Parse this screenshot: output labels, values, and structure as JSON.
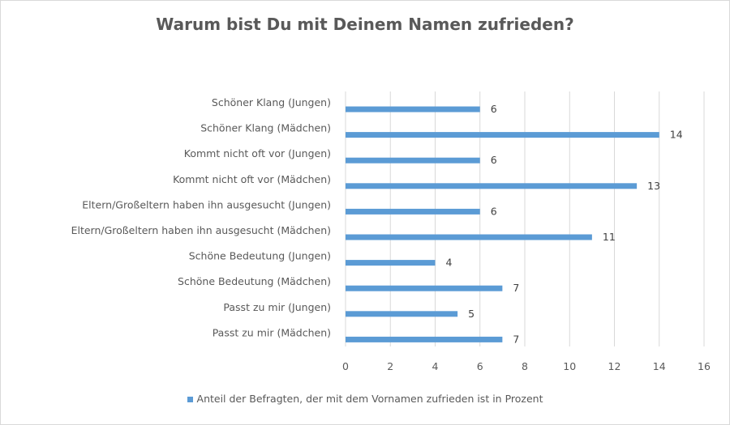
{
  "chart_data": {
    "type": "bar",
    "orientation": "horizontal",
    "title": "Warum bist Du mit Deinem Namen zufrieden?",
    "categories": [
      "Schöner Klang (Jungen)",
      "Schöner Klang (Mädchen)",
      "Kommt nicht oft vor (Jungen)",
      "Kommt nicht oft vor (Mädchen)",
      "Eltern/Großeltern haben ihn ausgesucht (Jungen)",
      "Eltern/Großeltern haben ihn ausgesucht (Mädchen)",
      "Schöne Bedeutung (Jungen)",
      "Schöne Bedeutung (Mädchen)",
      "Passt zu mir (Jungen)",
      "Passt zu mir (Mädchen)"
    ],
    "series": [
      {
        "name": "Anteil der Befragten, der mit dem Vornamen zufrieden ist in Prozent",
        "values": [
          6,
          14,
          6,
          13,
          6,
          11,
          4,
          7,
          5,
          7
        ],
        "color": "#5b9bd5"
      }
    ],
    "xlim": [
      0,
      16
    ],
    "xticks": [
      "0",
      "2",
      "4",
      "6",
      "8",
      "10",
      "12",
      "14",
      "16"
    ],
    "grid": true,
    "legend": "bottom",
    "data_labels": true
  }
}
